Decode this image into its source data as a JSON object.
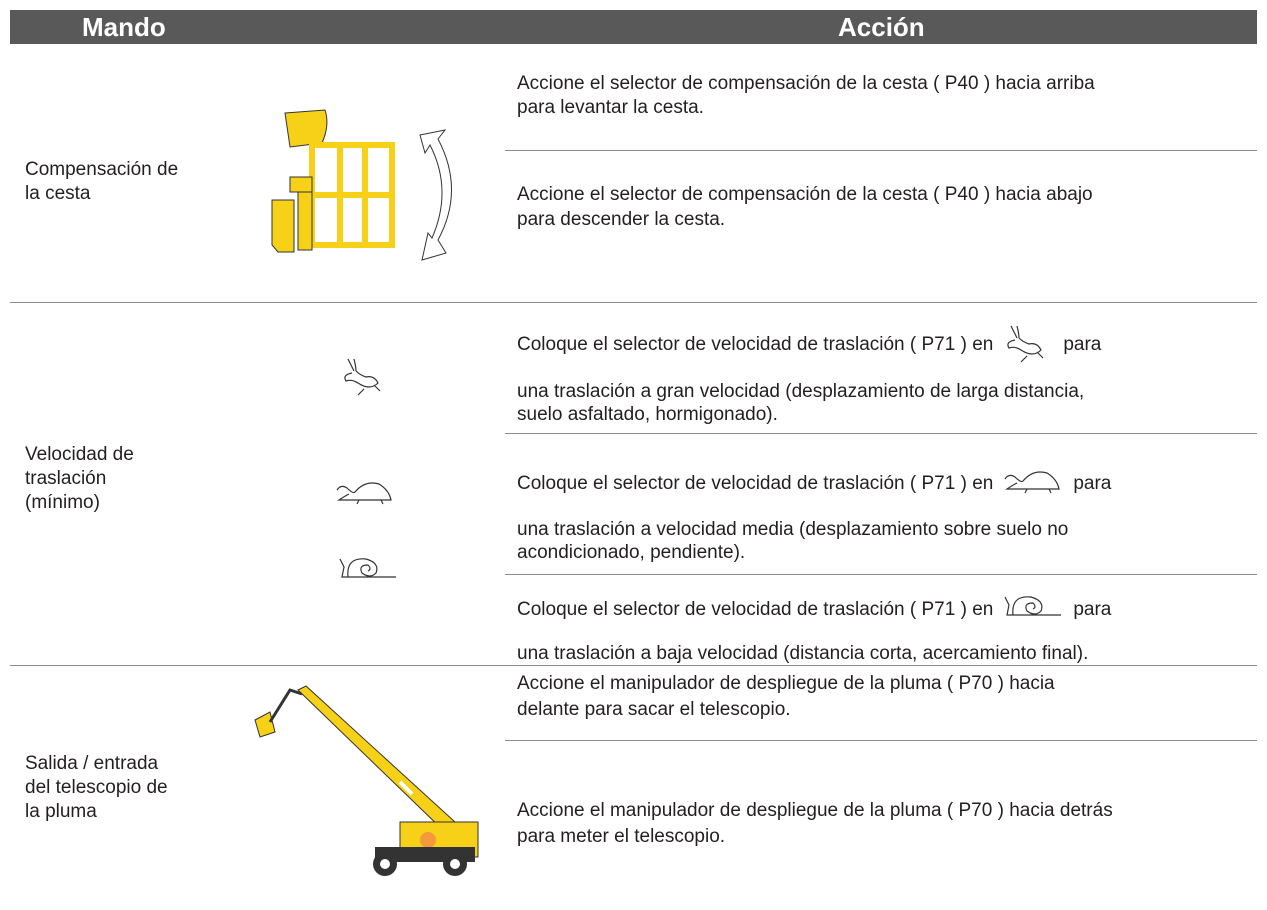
{
  "header": {
    "control": "Mando",
    "action": "Acción"
  },
  "rows": [
    {
      "control": [
        "Compensación de",
        "la cesta"
      ],
      "actions": [
        {
          "lines": [
            "Accione el selector de compensación de la cesta ( P40 ) hacia arriba",
            "para levantar la cesta."
          ]
        },
        {
          "lines": [
            "Accione el selector de compensación de la cesta ( P40 ) hacia abajo",
            "para descender la cesta."
          ]
        }
      ]
    },
    {
      "control": [
        "Velocidad de",
        "traslación",
        "(mínimo)"
      ],
      "actions": [
        {
          "lines": [
            [
              "Coloque el selector de velocidad de traslación ( P71 ) en",
              "para"
            ],
            "una traslación a gran velocidad (desplazamiento de larga distancia,",
            "suelo asfaltado, hormigonado)."
          ]
        },
        {
          "lines": [
            [
              "Coloque el selector de velocidad de traslación ( P71 ) en",
              "para"
            ],
            "una traslación a velocidad media (desplazamiento sobre suelo no",
            "acondicionado, pendiente)."
          ]
        },
        {
          "lines": [
            [
              "Coloque el selector de velocidad de traslación ( P71 ) en",
              "para"
            ],
            "una traslación a baja velocidad (distancia corta, acercamiento final)."
          ]
        }
      ]
    },
    {
      "control": [
        "Salida / entrada",
        "del telescopio de",
        "la pluma"
      ],
      "actions": [
        {
          "lines": [
            "Accione el manipulador de despliegue de la pluma ( P70 ) hacia",
            "delante para sacar el telescopio."
          ]
        },
        {
          "lines": [
            "Accione el manipulador de despliegue de la pluma ( P70 ) hacia detrás",
            "para meter el telescopio."
          ]
        }
      ]
    }
  ]
}
